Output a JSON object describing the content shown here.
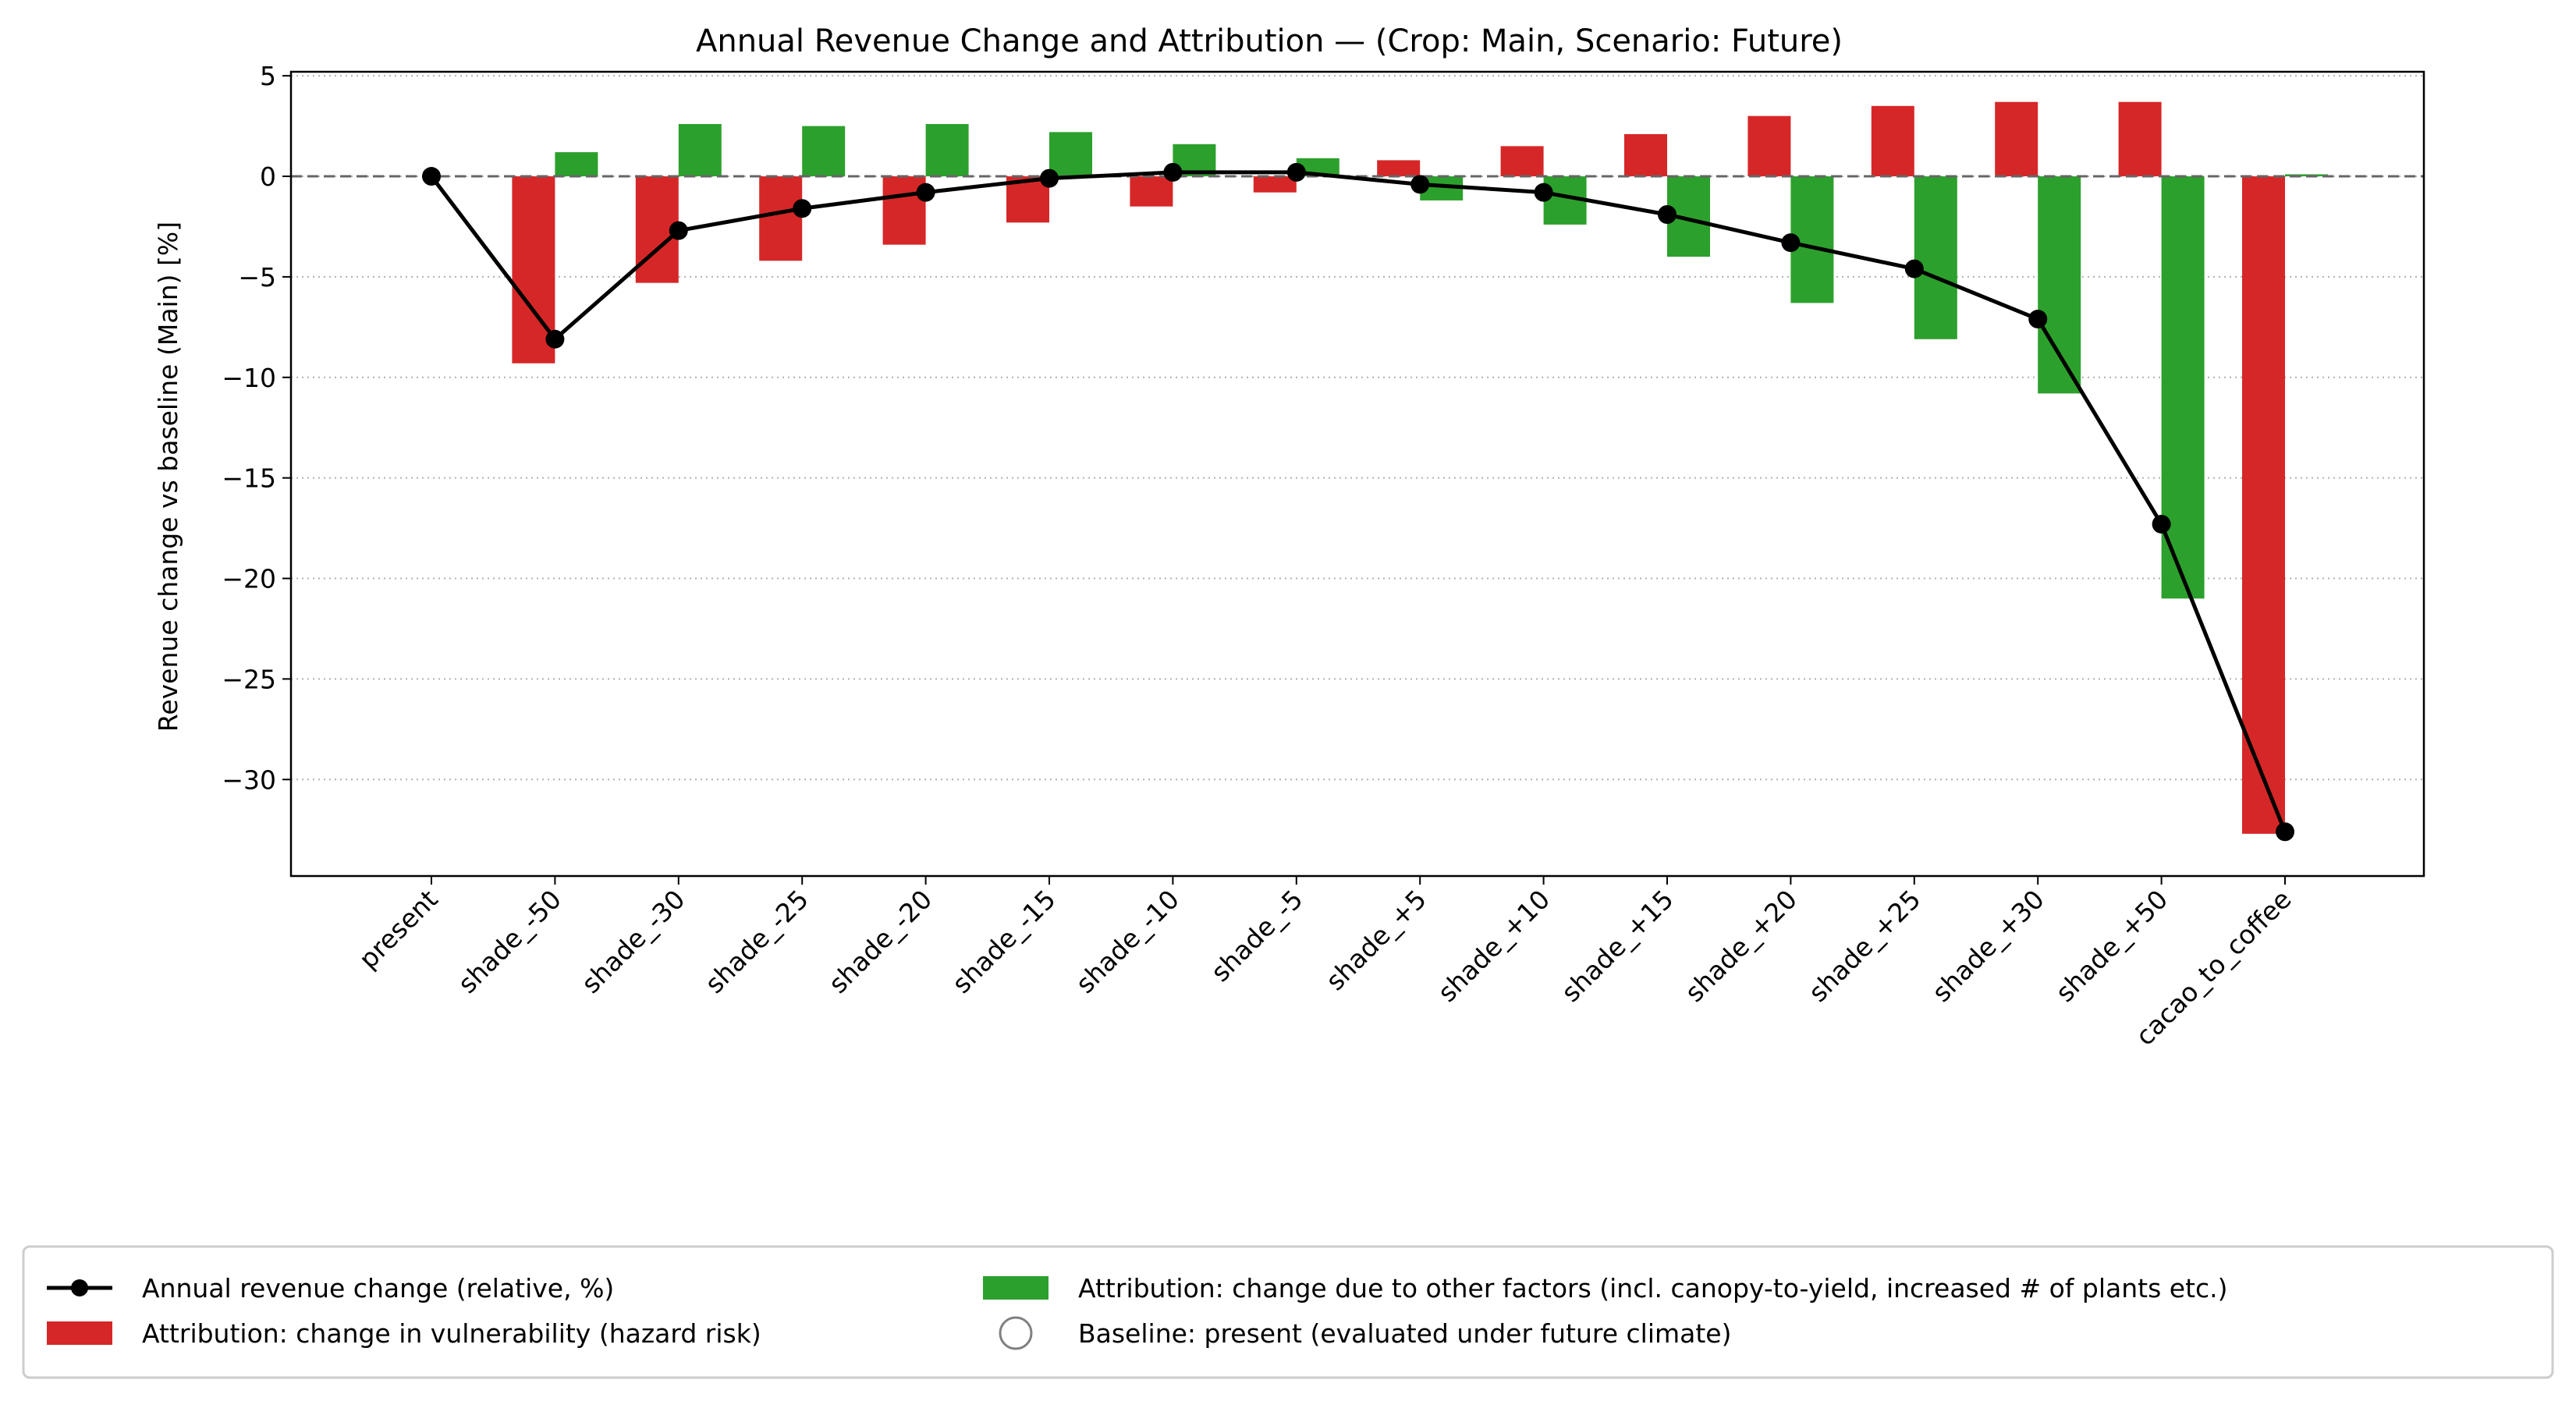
{
  "chart_data": {
    "type": "bar",
    "title": "Annual Revenue Change and Attribution — (Crop: Main, Scenario: Future)",
    "xlabel": "",
    "ylabel": "Revenue change vs baseline (Main) [%]",
    "ylim": [
      -34.8,
      5.2
    ],
    "yticks": [
      5,
      0,
      -5,
      -10,
      -15,
      -20,
      -25,
      -30
    ],
    "ytick_labels": [
      "5",
      "0",
      "−5",
      "−10",
      "−15",
      "−20",
      "−25",
      "−30"
    ],
    "grid": "horizontal dotted",
    "categories": [
      "present",
      "shade_-50",
      "shade_-30",
      "shade_-25",
      "shade_-20",
      "shade_-15",
      "shade_-10",
      "shade_-5",
      "shade_+5",
      "shade_+10",
      "shade_+15",
      "shade_+20",
      "shade_+25",
      "shade_+30",
      "shade_+50",
      "cacao_to_coffee"
    ],
    "series": [
      {
        "name": "Attribution: change in vulnerability (hazard risk)",
        "kind": "bar",
        "color": "#d62728",
        "values": [
          0,
          -9.3,
          -5.3,
          -4.2,
          -3.4,
          -2.3,
          -1.5,
          -0.8,
          0.8,
          1.5,
          2.1,
          3.0,
          3.5,
          3.7,
          3.7,
          -32.7
        ]
      },
      {
        "name": "Attribution: change due to other factors (incl. canopy-to-yield, increased # of plants etc.)",
        "kind": "bar",
        "color": "#2ca02c",
        "values": [
          0,
          1.2,
          2.6,
          2.5,
          2.6,
          2.2,
          1.6,
          0.9,
          -1.2,
          -2.4,
          -4.0,
          -6.3,
          -8.1,
          -10.8,
          -21.0,
          0.1
        ]
      },
      {
        "name": "Annual revenue change (relative, %)",
        "kind": "line",
        "color": "#000000",
        "values": [
          0,
          -8.1,
          -2.7,
          -1.6,
          -0.8,
          -0.1,
          0.2,
          0.2,
          -0.4,
          -0.8,
          -1.9,
          -3.3,
          -4.6,
          -7.1,
          -17.3,
          -32.6
        ]
      }
    ],
    "baseline_marker": "Baseline: present (evaluated under future climate)",
    "legend_position": "bottom (below plot)",
    "legend": {
      "items": [
        {
          "label": "Annual revenue change (relative, %)",
          "marker": "line-dot",
          "color": "#000000"
        },
        {
          "label": "Attribution: change in vulnerability (hazard risk)",
          "marker": "patch",
          "color": "#d62728"
        },
        {
          "label": "Attribution: change due to other factors (incl. canopy-to-yield, increased # of plants etc.)",
          "marker": "patch",
          "color": "#2ca02c"
        },
        {
          "label": "Baseline: present (evaluated under future climate)",
          "marker": "hollow-circle",
          "color": "#808080"
        }
      ]
    }
  }
}
